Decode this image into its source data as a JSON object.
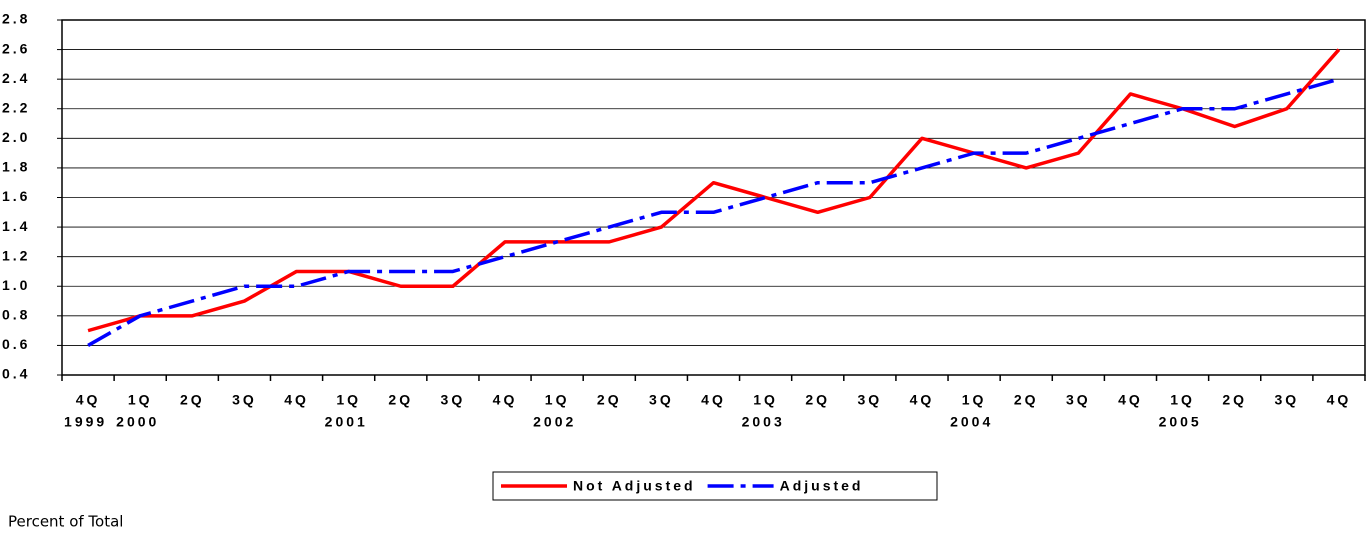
{
  "chart_data": {
    "type": "line",
    "categories": [
      "4Q",
      "1Q",
      "2Q",
      "3Q",
      "4Q",
      "1Q",
      "2Q",
      "3Q",
      "4Q",
      "1Q",
      "2Q",
      "3Q",
      "4Q",
      "1Q",
      "2Q",
      "3Q",
      "4Q",
      "1Q",
      "2Q",
      "3Q",
      "4Q",
      "1Q",
      "2Q",
      "3Q",
      "4Q"
    ],
    "category_years": [
      "1999",
      "2000",
      null,
      null,
      null,
      "2001",
      null,
      null,
      null,
      "2002",
      null,
      null,
      null,
      "2003",
      null,
      null,
      null,
      "2004",
      null,
      null,
      null,
      "2005",
      null,
      null,
      null
    ],
    "series": [
      {
        "name": "Not Adjusted",
        "color": "#ff0000",
        "style": "solid",
        "values": [
          0.7,
          0.8,
          0.8,
          0.9,
          1.1,
          1.1,
          1.0,
          1.0,
          1.3,
          1.3,
          1.3,
          1.4,
          1.7,
          1.6,
          1.5,
          1.6,
          2.0,
          1.9,
          1.8,
          1.9,
          2.3,
          2.2,
          2.08,
          2.2,
          2.6
        ]
      },
      {
        "name": "Adjusted",
        "color": "#0000ff",
        "style": "dashdot",
        "values": [
          0.6,
          0.8,
          0.9,
          1.0,
          1.0,
          1.1,
          1.1,
          1.1,
          1.2,
          1.3,
          1.4,
          1.5,
          1.5,
          1.6,
          1.7,
          1.7,
          1.8,
          1.9,
          1.9,
          2.0,
          2.1,
          2.2,
          2.2,
          2.3,
          2.4
        ]
      }
    ],
    "ylim": [
      0.4,
      2.8
    ],
    "yticks": [
      0.4,
      0.6,
      0.8,
      {
        "value": 1,
        "label": "1.0"
      },
      1.2,
      1.4,
      1.6,
      1.8,
      {
        "value": 2,
        "label": "2.0"
      },
      2.2,
      2.4,
      2.6,
      2.8
    ],
    "grid": true,
    "legend": "bottom",
    "footnote": "Percent of Total"
  }
}
